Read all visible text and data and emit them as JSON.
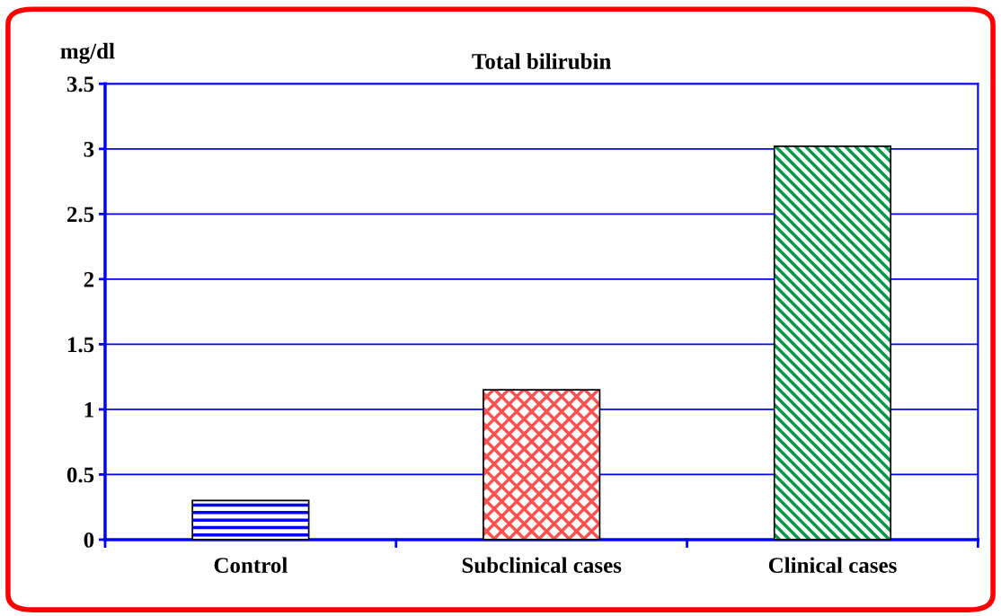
{
  "chart_data": {
    "type": "bar",
    "title": "Total bilirubin",
    "ylabel": "mg/dl",
    "categories": [
      "Control",
      "Subclinical cases",
      "Clinical cases"
    ],
    "values": [
      0.3,
      1.15,
      3.02
    ],
    "colors": [
      "#0000ff",
      "#ff5050",
      "#009944"
    ],
    "ylim": [
      0,
      3.5
    ],
    "yticks": [
      0,
      0.5,
      1,
      1.5,
      2,
      2.5,
      3,
      3.5
    ],
    "grid": "y",
    "legend": false
  }
}
